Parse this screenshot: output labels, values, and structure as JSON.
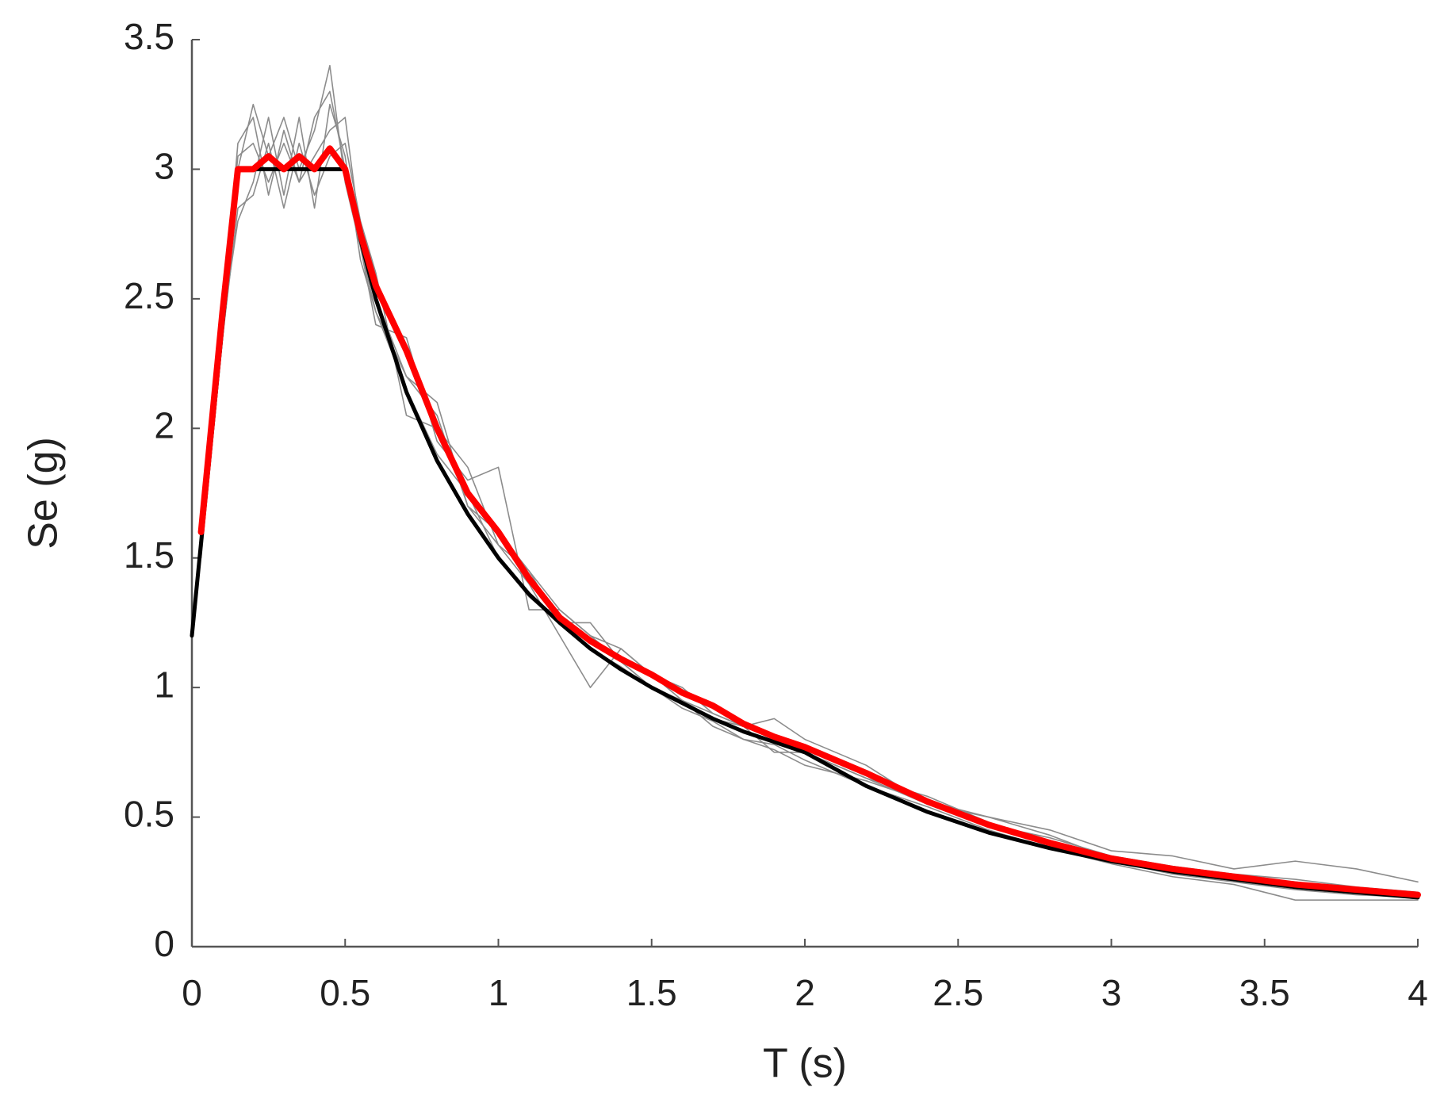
{
  "chart_data": {
    "type": "line",
    "xlabel": "T (s)",
    "ylabel": "Se (g)",
    "x": [
      0,
      0.03,
      0.1,
      0.15,
      0.2,
      0.25,
      0.3,
      0.35,
      0.4,
      0.45,
      0.5,
      0.55,
      0.6,
      0.7,
      0.8,
      0.9,
      1.0,
      1.1,
      1.2,
      1.3,
      1.4,
      1.5,
      1.6,
      1.7,
      1.8,
      1.9,
      2.0,
      2.2,
      2.4,
      2.6,
      2.8,
      3.0,
      3.2,
      3.4,
      3.6,
      3.8,
      4.0
    ],
    "series": [
      {
        "color": "#8c8c8c",
        "values": [
          null,
          1.55,
          2.4,
          3.1,
          3.2,
          2.9,
          3.15,
          2.95,
          3.2,
          3.3,
          3.0,
          2.7,
          2.45,
          2.2,
          2.1,
          1.7,
          1.55,
          1.45,
          1.3,
          1.2,
          1.15,
          1.05,
          0.95,
          0.9,
          0.85,
          0.8,
          0.75,
          0.65,
          0.55,
          0.47,
          0.42,
          0.35,
          0.31,
          0.28,
          0.26,
          0.23,
          0.21
        ]
      },
      {
        "color": "#8c8c8c",
        "values": [
          null,
          1.5,
          2.35,
          2.85,
          2.9,
          3.1,
          2.85,
          3.1,
          2.9,
          3.05,
          3.1,
          2.8,
          2.6,
          2.05,
          2.0,
          1.85,
          1.55,
          1.4,
          1.2,
          1.0,
          1.15,
          1.05,
          1.0,
          0.9,
          0.85,
          0.75,
          0.75,
          0.65,
          0.58,
          0.48,
          0.4,
          0.33,
          0.28,
          0.25,
          0.22,
          0.2,
          0.19
        ]
      },
      {
        "color": "#8c8c8c",
        "values": [
          null,
          1.6,
          2.5,
          3.0,
          3.25,
          3.05,
          3.2,
          3.0,
          3.15,
          3.4,
          2.95,
          2.7,
          2.4,
          2.35,
          1.95,
          1.8,
          1.85,
          1.3,
          1.3,
          1.2,
          1.1,
          1.0,
          0.95,
          0.88,
          0.85,
          0.88,
          0.8,
          0.7,
          0.55,
          0.5,
          0.45,
          0.37,
          0.35,
          0.3,
          0.33,
          0.3,
          0.25
        ]
      },
      {
        "color": "#8c8c8c",
        "values": [
          null,
          1.55,
          2.4,
          2.8,
          2.95,
          3.2,
          2.9,
          3.2,
          2.85,
          3.25,
          3.05,
          2.65,
          2.45,
          2.15,
          1.9,
          1.75,
          1.5,
          1.35,
          1.25,
          1.25,
          1.1,
          1.0,
          0.95,
          0.85,
          0.8,
          0.78,
          0.72,
          0.62,
          0.54,
          0.45,
          0.38,
          0.32,
          0.27,
          0.24,
          0.18,
          0.18,
          0.18
        ]
      },
      {
        "color": "#8c8c8c",
        "values": [
          null,
          1.6,
          2.45,
          3.05,
          3.1,
          2.95,
          3.1,
          2.95,
          3.05,
          3.15,
          3.2,
          2.75,
          2.5,
          2.2,
          2.05,
          1.7,
          1.6,
          1.45,
          1.25,
          1.15,
          1.08,
          1.0,
          0.92,
          0.87,
          0.8,
          0.76,
          0.7,
          0.64,
          0.56,
          0.5,
          0.43,
          0.34,
          0.3,
          0.27,
          0.25,
          0.22,
          0.2
        ]
      },
      {
        "color": "#000000",
        "values": [
          1.2,
          1.56,
          2.4,
          3.0,
          3.0,
          3.0,
          3.0,
          3.0,
          3.0,
          3.0,
          3.0,
          2.73,
          2.5,
          2.14,
          1.875,
          1.67,
          1.5,
          1.36,
          1.25,
          1.15,
          1.07,
          1.0,
          0.94,
          0.88,
          0.83,
          0.79,
          0.75,
          0.62,
          0.52,
          0.44,
          0.38,
          0.33,
          0.29,
          0.26,
          0.23,
          0.21,
          0.19
        ]
      },
      {
        "color": "#ff0000",
        "values": [
          null,
          1.6,
          2.45,
          3.0,
          3.0,
          3.05,
          3.0,
          3.05,
          3.0,
          3.08,
          3.0,
          2.75,
          2.55,
          2.3,
          2.0,
          1.75,
          1.6,
          1.42,
          1.27,
          1.18,
          1.11,
          1.05,
          0.98,
          0.93,
          0.86,
          0.81,
          0.77,
          0.67,
          0.56,
          0.47,
          0.4,
          0.34,
          0.3,
          0.27,
          0.24,
          0.22,
          0.2
        ]
      }
    ],
    "xlim": [
      0,
      4
    ],
    "xticks": [
      0,
      0.5,
      1,
      1.5,
      2,
      2.5,
      3,
      3.5,
      4
    ],
    "ylim": [
      0,
      3.5
    ],
    "yticks": [
      0,
      0.5,
      1,
      1.5,
      2,
      2.5,
      3,
      3.5
    ],
    "grid": false
  }
}
